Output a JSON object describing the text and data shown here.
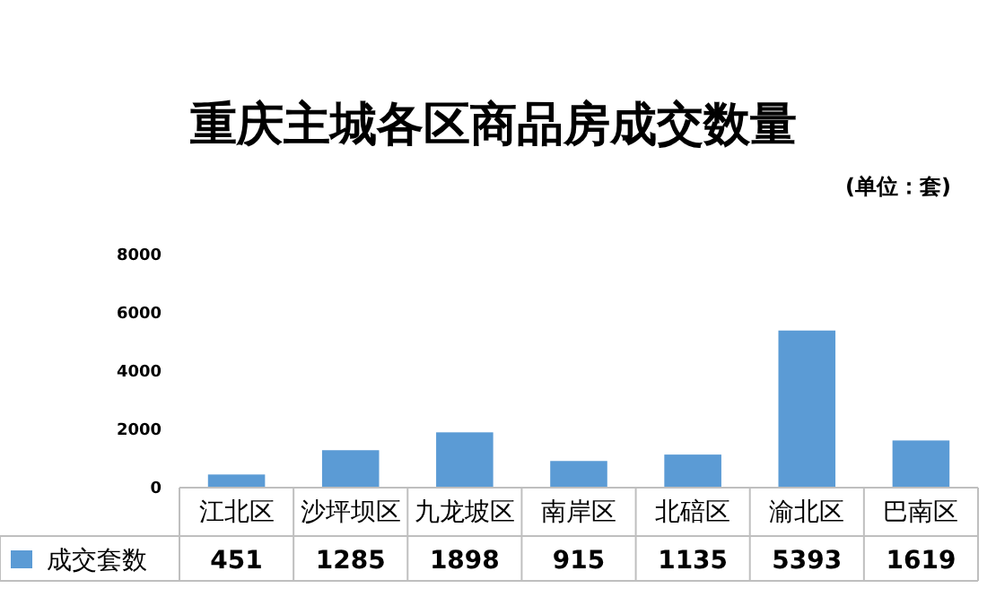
{
  "chart_data": {
    "type": "bar",
    "title": "重庆主城各区商品房成交数量",
    "subtitle": "(单位：套)",
    "categories": [
      "江北区",
      "沙坪坝区",
      "九龙坡区",
      "南岸区",
      "北碚区",
      "渝北区",
      "巴南区"
    ],
    "series": [
      {
        "name": "成交套数",
        "color": "#5b9bd5",
        "values": [
          451,
          1285,
          1898,
          915,
          1135,
          5393,
          1619
        ]
      }
    ],
    "ylim": [
      0,
      8000
    ],
    "yticks": [
      0,
      2000,
      4000,
      6000,
      8000
    ],
    "grid": false,
    "legend": "bottom",
    "data_labels": true
  }
}
